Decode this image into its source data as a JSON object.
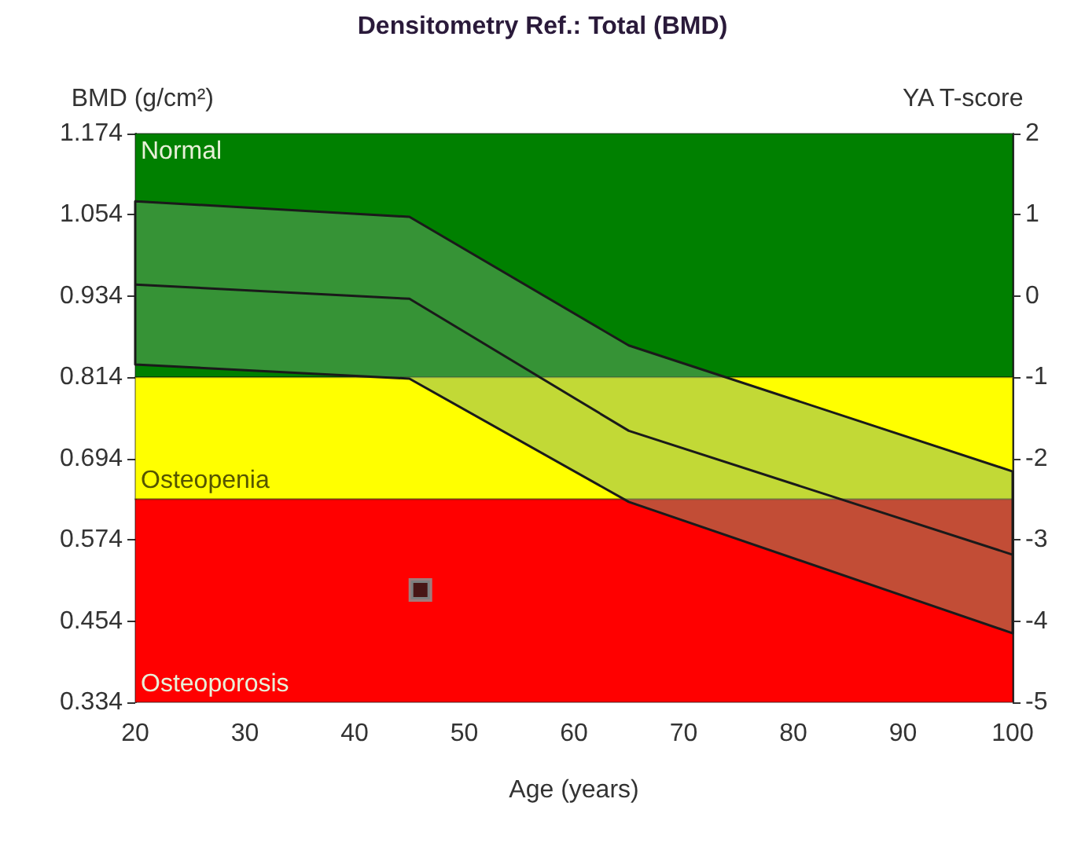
{
  "chart_data": {
    "type": "line",
    "title": "Densitometry Ref.: Total (BMD)",
    "xlabel": "Age (years)",
    "ylabel": "BMD (g/cm²)",
    "y2label": "YA T-score",
    "xlim": [
      20,
      100
    ],
    "xticks": [
      20,
      30,
      40,
      50,
      60,
      70,
      80,
      90,
      100
    ],
    "ylim": [
      0.334,
      1.174
    ],
    "yticks": [
      0.334,
      0.454,
      0.574,
      0.694,
      0.814,
      0.934,
      1.054,
      1.174
    ],
    "y2lim": [
      -5,
      2
    ],
    "y2ticks": [
      -5,
      -4,
      -3,
      -2,
      -1,
      0,
      1,
      2
    ],
    "grid": false,
    "bands": [
      {
        "axis": "y",
        "from": 0.814,
        "to": 1.174,
        "label": "Normal",
        "color": "#008000"
      },
      {
        "axis": "y",
        "from": 0.634,
        "to": 0.814,
        "label": "Osteopenia",
        "color": "#ffff00"
      },
      {
        "axis": "y",
        "from": 0.334,
        "to": 0.634,
        "label": "Osteoporosis",
        "color": "#ff0000"
      }
    ],
    "series": [
      {
        "color": "#1a1a1a",
        "x": [
          20,
          45,
          65,
          100
        ],
        "values": [
          0.951,
          0.93,
          0.735,
          0.552
        ],
        "lower": [
          0.833,
          0.812,
          0.63,
          0.436
        ],
        "upper": [
          1.074,
          1.051,
          0.861,
          0.675
        ]
      },
      {
        "type": "scatter",
        "color": "#1a1a1a",
        "marker": "square",
        "x": [
          46
        ],
        "values": [
          0.5
        ]
      }
    ]
  }
}
